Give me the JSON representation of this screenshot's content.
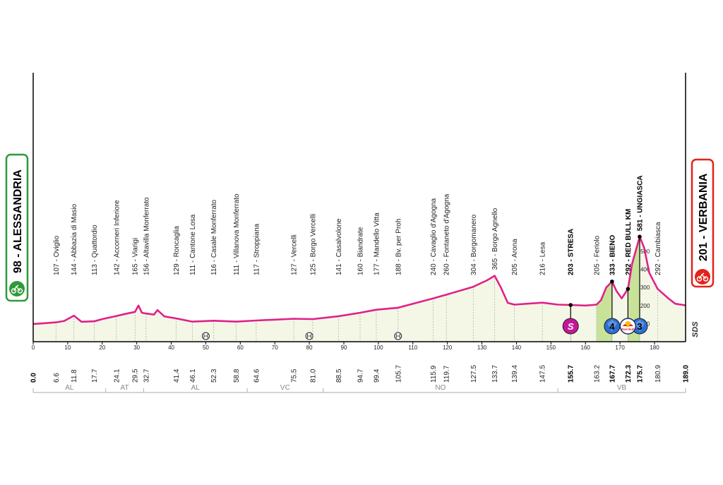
{
  "start": {
    "altitude": "98",
    "name": "ALESSANDRIA",
    "color": "#2e9a3a"
  },
  "finish": {
    "altitude": "201",
    "name": "VERBANIA",
    "color": "#e2231a"
  },
  "brand": "SDS",
  "colors": {
    "profile_line": "#e0218a",
    "profile_fill": "#f4f7e6",
    "climb_fill": "#c9e29a",
    "axis": "#000000",
    "gpm_blue": "#2a6fd6",
    "sprint_magenta": "#c5179a"
  },
  "chart_data": {
    "type": "area",
    "xlabel": "",
    "ylabel": "",
    "xlim": [
      0,
      189
    ],
    "ylim": [
      0,
      700
    ],
    "x_ticks": [
      0,
      10,
      20,
      30,
      40,
      50,
      60,
      70,
      80,
      90,
      100,
      110,
      120,
      130,
      140,
      150,
      160,
      170,
      180
    ],
    "profile": [
      [
        0,
        98
      ],
      [
        3,
        102
      ],
      [
        6.6,
        107
      ],
      [
        9,
        115
      ],
      [
        11.8,
        144
      ],
      [
        14,
        110
      ],
      [
        17.7,
        113
      ],
      [
        20,
        125
      ],
      [
        24.1,
        142
      ],
      [
        27,
        155
      ],
      [
        29.5,
        165
      ],
      [
        30.5,
        200
      ],
      [
        31.5,
        160
      ],
      [
        32.7,
        156
      ],
      [
        35,
        150
      ],
      [
        36,
        175
      ],
      [
        38,
        140
      ],
      [
        41.4,
        129
      ],
      [
        46.1,
        111
      ],
      [
        52.3,
        116
      ],
      [
        58.8,
        111
      ],
      [
        64.6,
        117
      ],
      [
        75.5,
        127
      ],
      [
        81.0,
        125
      ],
      [
        88.5,
        141
      ],
      [
        94.7,
        160
      ],
      [
        99.4,
        177
      ],
      [
        105.7,
        188
      ],
      [
        115.9,
        240
      ],
      [
        119.7,
        260
      ],
      [
        127.5,
        304
      ],
      [
        131.5,
        340
      ],
      [
        133.7,
        365
      ],
      [
        135.5,
        300
      ],
      [
        137.5,
        215
      ],
      [
        139.4,
        205
      ],
      [
        147.5,
        216
      ],
      [
        152,
        205
      ],
      [
        155.7,
        203
      ],
      [
        160,
        200
      ],
      [
        163.2,
        205
      ],
      [
        164.5,
        230
      ],
      [
        166,
        300
      ],
      [
        167.7,
        333
      ],
      [
        169,
        280
      ],
      [
        170.5,
        240
      ],
      [
        172.3,
        292
      ],
      [
        173.5,
        430
      ],
      [
        175.7,
        581
      ],
      [
        177,
        520
      ],
      [
        178.5,
        380
      ],
      [
        180.9,
        292
      ],
      [
        184,
        240
      ],
      [
        186,
        210
      ],
      [
        189,
        201
      ]
    ],
    "locations": [
      {
        "km": 6.6,
        "label": "107 - Ovigliо"
      },
      {
        "km": 11.8,
        "label": "144 - Abbazia di Masio"
      },
      {
        "km": 17.7,
        "label": "113 - Quattordio"
      },
      {
        "km": 24.1,
        "label": "142 - Accorneri Inferiore"
      },
      {
        "km": 29.5,
        "label": "165 - Viarigi"
      },
      {
        "km": 32.7,
        "label": "156 - Altavilla Monferrato"
      },
      {
        "km": 41.4,
        "label": "129 - Roncaglia"
      },
      {
        "km": 46.1,
        "label": "111 - Cantone Losa"
      },
      {
        "km": 52.3,
        "label": "116 - Casale Monferrato"
      },
      {
        "km": 58.8,
        "label": "111 - Villanova Monferrato"
      },
      {
        "km": 64.6,
        "label": "117 - Stroppiana"
      },
      {
        "km": 75.5,
        "label": "127 - Vercelli"
      },
      {
        "km": 81.0,
        "label": "125 - Borgo Vercelli"
      },
      {
        "km": 88.5,
        "label": "141 - Casalvolone"
      },
      {
        "km": 94.7,
        "label": "160 - Biandrate"
      },
      {
        "km": 99.4,
        "label": "177 - Mandello Vitta"
      },
      {
        "km": 105.7,
        "label": "188 - Bv. per Proh"
      },
      {
        "km": 115.9,
        "label": "240 - Cavaglio d'Agogna"
      },
      {
        "km": 119.7,
        "label": "260 - Fontaneto d'Agogna"
      },
      {
        "km": 127.5,
        "label": "304 - Borgomanero"
      },
      {
        "km": 133.7,
        "label": "365 - Borgo Agnello"
      },
      {
        "km": 139.4,
        "label": "205 - Arona"
      },
      {
        "km": 147.5,
        "label": "216 - Lesa"
      },
      {
        "km": 155.7,
        "label": "203 - STRESA",
        "bold": true
      },
      {
        "km": 163.2,
        "label": "205 - Feriolo"
      },
      {
        "km": 167.7,
        "label": "333 - BIENO",
        "bold": true
      },
      {
        "km": 172.3,
        "label": "292 - RED BULL KM",
        "bold": true
      },
      {
        "km": 175.7,
        "label": "581 - UNGIASCA",
        "bold": true
      },
      {
        "km": 180.9,
        "label": "292 - Cambiasca"
      }
    ],
    "km_marks": [
      {
        "km": 0,
        "label": "0.0",
        "bold": true
      },
      {
        "km": 6.6,
        "label": "6.6"
      },
      {
        "km": 11.8,
        "label": "11.8"
      },
      {
        "km": 17.7,
        "label": "17.7"
      },
      {
        "km": 24.1,
        "label": "24.1"
      },
      {
        "km": 29.5,
        "label": "29.5"
      },
      {
        "km": 32.7,
        "label": "32.7"
      },
      {
        "km": 41.4,
        "label": "41.4"
      },
      {
        "km": 46.1,
        "label": "46.1"
      },
      {
        "km": 52.3,
        "label": "52.3"
      },
      {
        "km": 58.8,
        "label": "58.8"
      },
      {
        "km": 64.6,
        "label": "64.6"
      },
      {
        "km": 75.5,
        "label": "75.5"
      },
      {
        "km": 81.0,
        "label": "81.0"
      },
      {
        "km": 88.5,
        "label": "88.5"
      },
      {
        "km": 94.7,
        "label": "94.7"
      },
      {
        "km": 99.4,
        "label": "99.4"
      },
      {
        "km": 105.7,
        "label": "105.7"
      },
      {
        "km": 115.9,
        "label": "115.9"
      },
      {
        "km": 119.7,
        "label": "119.7"
      },
      {
        "km": 127.5,
        "label": "127.5"
      },
      {
        "km": 133.7,
        "label": "133.7"
      },
      {
        "km": 139.4,
        "label": "139.4"
      },
      {
        "km": 147.5,
        "label": "147.5"
      },
      {
        "km": 155.7,
        "label": "155.7",
        "bold": true
      },
      {
        "km": 163.2,
        "label": "163.2"
      },
      {
        "km": 167.7,
        "label": "167.7",
        "bold": true
      },
      {
        "km": 172.3,
        "label": "172.3",
        "bold": true
      },
      {
        "km": 175.7,
        "label": "175.7",
        "bold": true
      },
      {
        "km": 180.9,
        "label": "180.9"
      },
      {
        "km": 189.0,
        "label": "189.0",
        "bold": true
      }
    ],
    "regions": [
      {
        "from": 0,
        "to": 21,
        "label": "AL"
      },
      {
        "from": 21,
        "to": 32,
        "label": "AT"
      },
      {
        "from": 32,
        "to": 62,
        "label": "AL"
      },
      {
        "from": 62,
        "to": 84,
        "label": "VC"
      },
      {
        "from": 84,
        "to": 152,
        "label": "NO"
      },
      {
        "from": 152,
        "to": 189,
        "label": "VB"
      }
    ],
    "climbs": [
      {
        "from": 163.2,
        "to": 167.7,
        "category": "4"
      },
      {
        "from": 172.3,
        "to": 175.7,
        "category": "3"
      }
    ],
    "sprint": {
      "km": 155.7,
      "label": "S"
    },
    "red_bull_km": {
      "km": 172.3,
      "label": "Red Bull"
    },
    "climb_altitude_ticks": [
      100,
      200,
      300,
      400,
      500
    ],
    "markers": [
      {
        "km": 50,
        "kind": "level-crossing"
      },
      {
        "km": 80,
        "kind": "level-crossing"
      },
      {
        "km": 105.7,
        "kind": "level-crossing"
      }
    ]
  }
}
